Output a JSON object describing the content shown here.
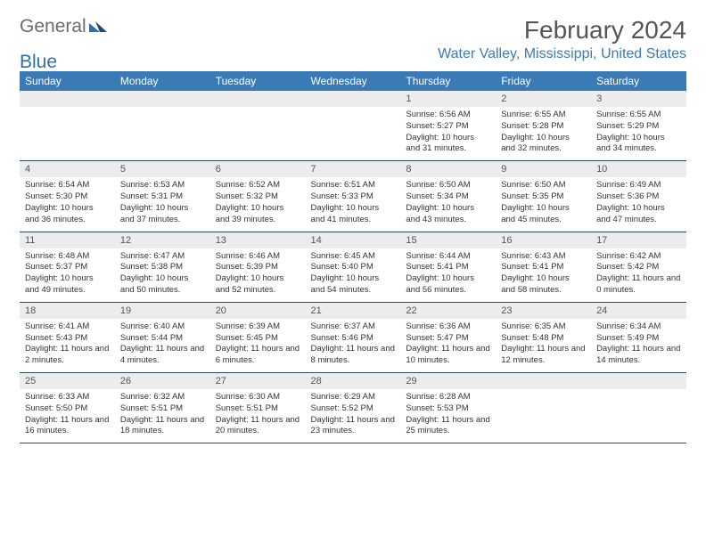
{
  "brand": {
    "part1": "General",
    "part2": "Blue"
  },
  "title": "February 2024",
  "location": "Water Valley, Mississippi, United States",
  "colors": {
    "header_bg": "#3b7bb5",
    "header_text": "#ffffff",
    "daynum_bg": "#ececec",
    "rule": "#2b4a66",
    "brand_gray": "#6b6b6b",
    "brand_blue": "#2f6fa8"
  },
  "day_names": [
    "Sunday",
    "Monday",
    "Tuesday",
    "Wednesday",
    "Thursday",
    "Friday",
    "Saturday"
  ],
  "weeks": [
    [
      null,
      null,
      null,
      null,
      {
        "n": "1",
        "sr": "6:56 AM",
        "ss": "5:27 PM",
        "dl": "10 hours and 31 minutes."
      },
      {
        "n": "2",
        "sr": "6:55 AM",
        "ss": "5:28 PM",
        "dl": "10 hours and 32 minutes."
      },
      {
        "n": "3",
        "sr": "6:55 AM",
        "ss": "5:29 PM",
        "dl": "10 hours and 34 minutes."
      }
    ],
    [
      {
        "n": "4",
        "sr": "6:54 AM",
        "ss": "5:30 PM",
        "dl": "10 hours and 36 minutes."
      },
      {
        "n": "5",
        "sr": "6:53 AM",
        "ss": "5:31 PM",
        "dl": "10 hours and 37 minutes."
      },
      {
        "n": "6",
        "sr": "6:52 AM",
        "ss": "5:32 PM",
        "dl": "10 hours and 39 minutes."
      },
      {
        "n": "7",
        "sr": "6:51 AM",
        "ss": "5:33 PM",
        "dl": "10 hours and 41 minutes."
      },
      {
        "n": "8",
        "sr": "6:50 AM",
        "ss": "5:34 PM",
        "dl": "10 hours and 43 minutes."
      },
      {
        "n": "9",
        "sr": "6:50 AM",
        "ss": "5:35 PM",
        "dl": "10 hours and 45 minutes."
      },
      {
        "n": "10",
        "sr": "6:49 AM",
        "ss": "5:36 PM",
        "dl": "10 hours and 47 minutes."
      }
    ],
    [
      {
        "n": "11",
        "sr": "6:48 AM",
        "ss": "5:37 PM",
        "dl": "10 hours and 49 minutes."
      },
      {
        "n": "12",
        "sr": "6:47 AM",
        "ss": "5:38 PM",
        "dl": "10 hours and 50 minutes."
      },
      {
        "n": "13",
        "sr": "6:46 AM",
        "ss": "5:39 PM",
        "dl": "10 hours and 52 minutes."
      },
      {
        "n": "14",
        "sr": "6:45 AM",
        "ss": "5:40 PM",
        "dl": "10 hours and 54 minutes."
      },
      {
        "n": "15",
        "sr": "6:44 AM",
        "ss": "5:41 PM",
        "dl": "10 hours and 56 minutes."
      },
      {
        "n": "16",
        "sr": "6:43 AM",
        "ss": "5:41 PM",
        "dl": "10 hours and 58 minutes."
      },
      {
        "n": "17",
        "sr": "6:42 AM",
        "ss": "5:42 PM",
        "dl": "11 hours and 0 minutes."
      }
    ],
    [
      {
        "n": "18",
        "sr": "6:41 AM",
        "ss": "5:43 PM",
        "dl": "11 hours and 2 minutes."
      },
      {
        "n": "19",
        "sr": "6:40 AM",
        "ss": "5:44 PM",
        "dl": "11 hours and 4 minutes."
      },
      {
        "n": "20",
        "sr": "6:39 AM",
        "ss": "5:45 PM",
        "dl": "11 hours and 6 minutes."
      },
      {
        "n": "21",
        "sr": "6:37 AM",
        "ss": "5:46 PM",
        "dl": "11 hours and 8 minutes."
      },
      {
        "n": "22",
        "sr": "6:36 AM",
        "ss": "5:47 PM",
        "dl": "11 hours and 10 minutes."
      },
      {
        "n": "23",
        "sr": "6:35 AM",
        "ss": "5:48 PM",
        "dl": "11 hours and 12 minutes."
      },
      {
        "n": "24",
        "sr": "6:34 AM",
        "ss": "5:49 PM",
        "dl": "11 hours and 14 minutes."
      }
    ],
    [
      {
        "n": "25",
        "sr": "6:33 AM",
        "ss": "5:50 PM",
        "dl": "11 hours and 16 minutes."
      },
      {
        "n": "26",
        "sr": "6:32 AM",
        "ss": "5:51 PM",
        "dl": "11 hours and 18 minutes."
      },
      {
        "n": "27",
        "sr": "6:30 AM",
        "ss": "5:51 PM",
        "dl": "11 hours and 20 minutes."
      },
      {
        "n": "28",
        "sr": "6:29 AM",
        "ss": "5:52 PM",
        "dl": "11 hours and 23 minutes."
      },
      {
        "n": "29",
        "sr": "6:28 AM",
        "ss": "5:53 PM",
        "dl": "11 hours and 25 minutes."
      },
      null,
      null
    ]
  ],
  "labels": {
    "sunrise": "Sunrise: ",
    "sunset": "Sunset: ",
    "daylight": "Daylight: "
  }
}
